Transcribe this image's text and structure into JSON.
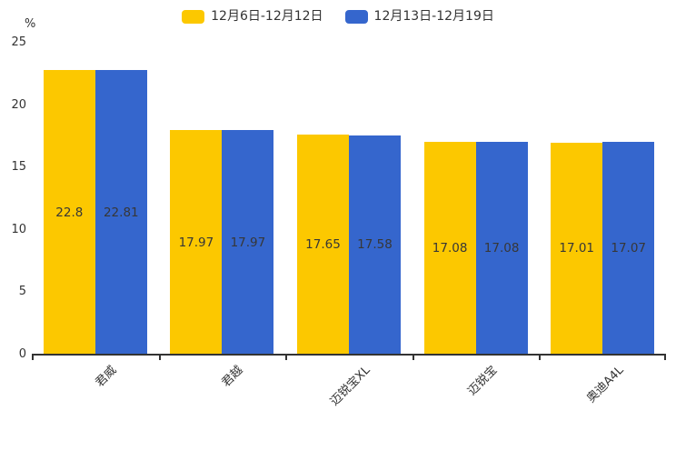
{
  "chart_data": {
    "type": "bar",
    "title": "",
    "categories": [
      "君威",
      "君越",
      "迈锐宝XL",
      "迈锐宝",
      "奥迪A4L"
    ],
    "series": [
      {
        "name": "12月6日-12月12日",
        "color": "#FCC800",
        "values": [
          22.8,
          17.97,
          17.65,
          17.08,
          17.01
        ]
      },
      {
        "name": "12月13日-12月19日",
        "color": "#3566CD",
        "values": [
          22.81,
          17.97,
          17.58,
          17.08,
          17.07
        ]
      }
    ],
    "xlabel": "",
    "ylabel": "%",
    "ylim": [
      0,
      25
    ],
    "yticks": [
      0,
      5,
      10,
      15,
      20,
      25
    ],
    "grid": false,
    "legend_position": "top",
    "value_labels": "inside",
    "axis_color": "#333333",
    "label_color": "#333333"
  }
}
